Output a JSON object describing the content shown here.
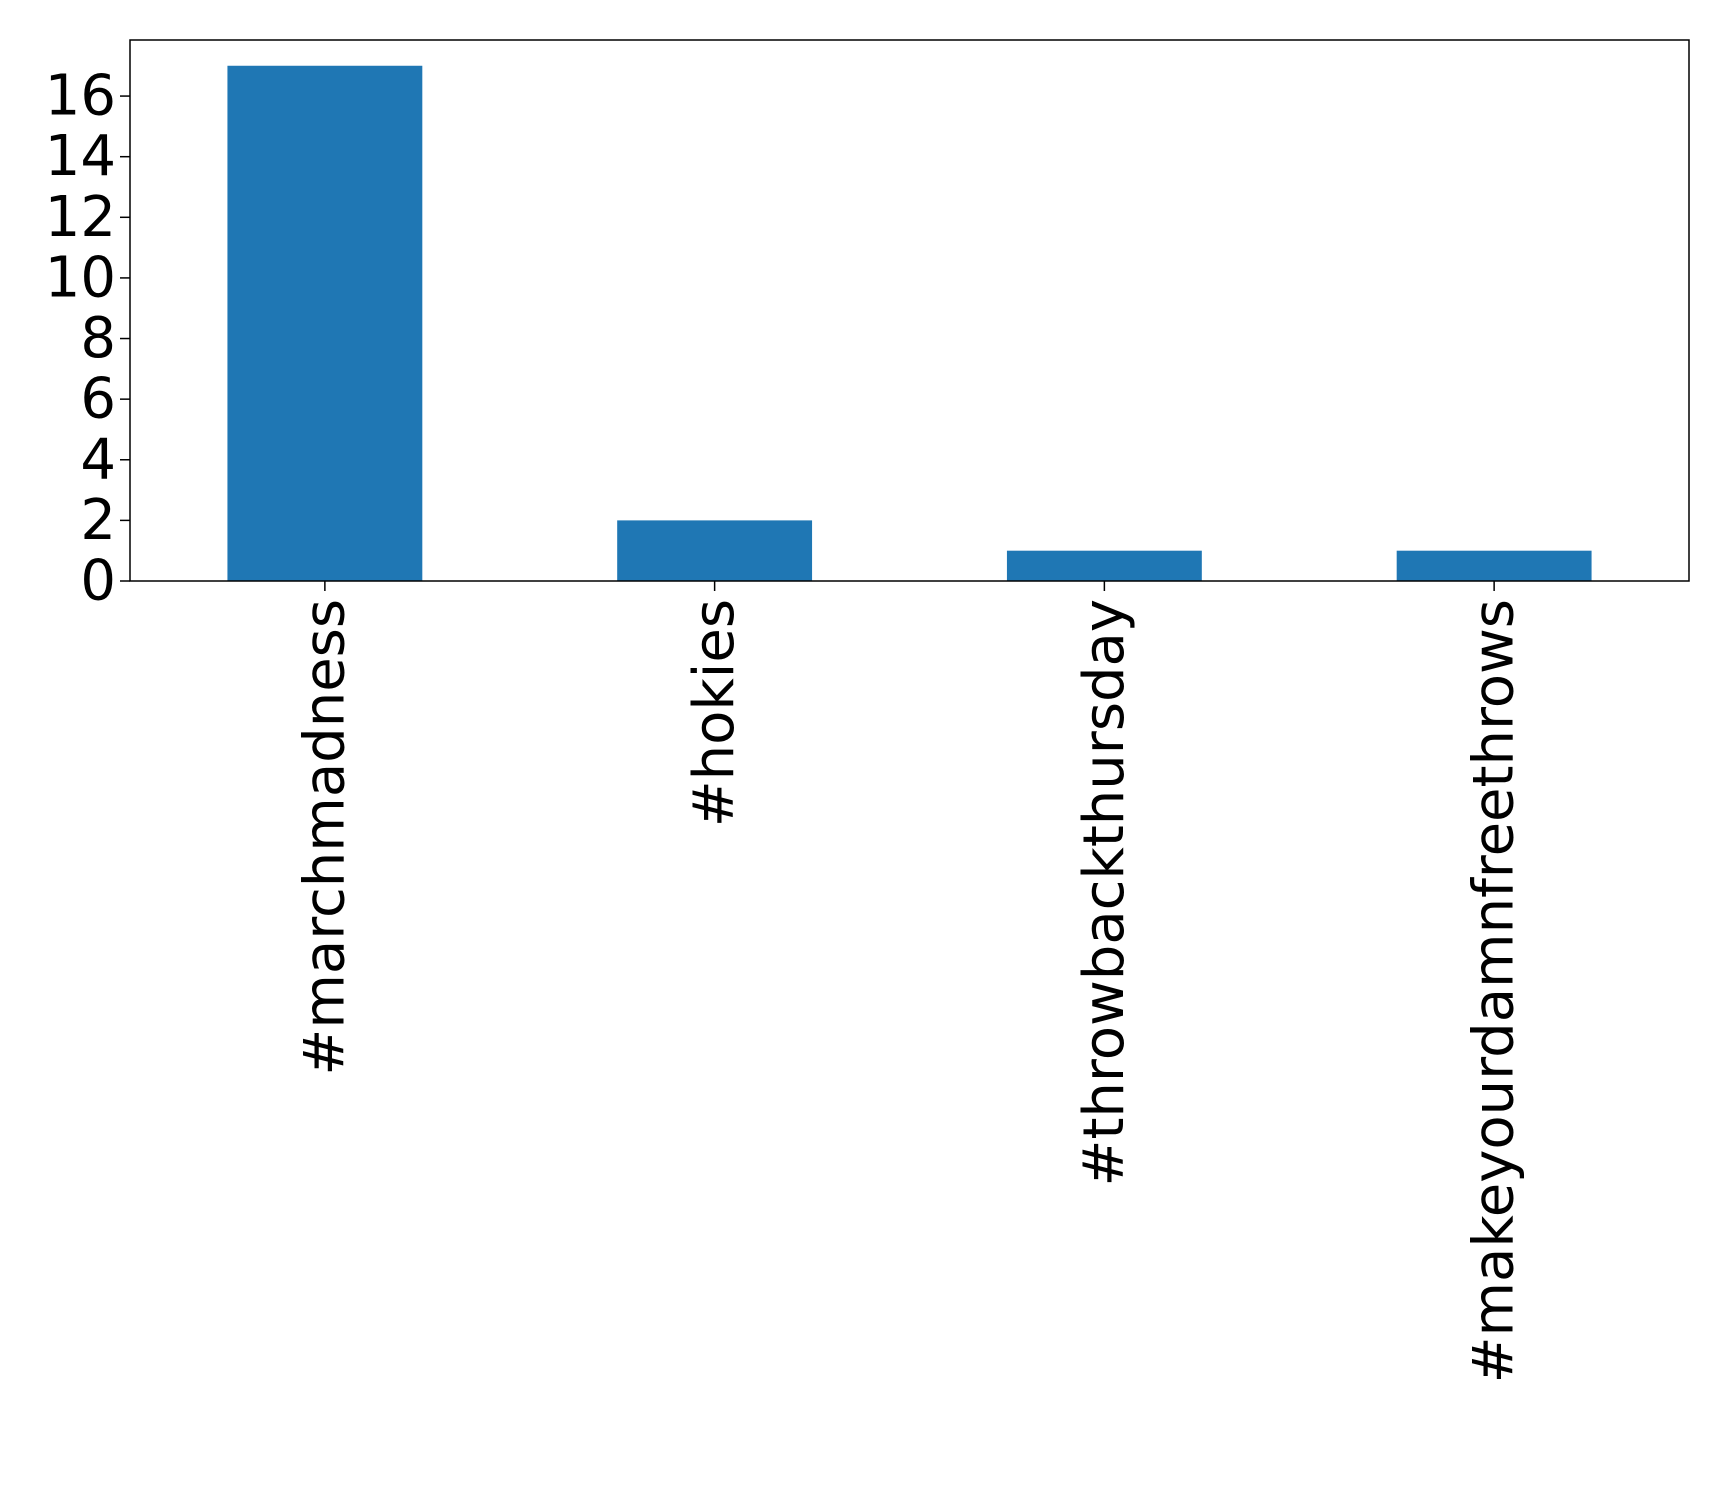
{
  "chart_data": {
    "type": "bar",
    "title": "",
    "xlabel": "",
    "ylabel": "",
    "categories": [
      "#marchmadness",
      "#hokies",
      "#throwbackthursday",
      "#makeyourdamnfreethrows"
    ],
    "values": [
      17,
      2,
      1,
      1
    ],
    "ylim": [
      0,
      17.85
    ],
    "yticks": [
      0,
      2,
      4,
      6,
      8,
      10,
      12,
      14,
      16
    ],
    "ytick_labels": [
      "0",
      "2",
      "4",
      "6",
      "8",
      "10",
      "12",
      "14",
      "16"
    ],
    "grid": false,
    "legend": "none",
    "bar_color": "#1f77b4"
  }
}
